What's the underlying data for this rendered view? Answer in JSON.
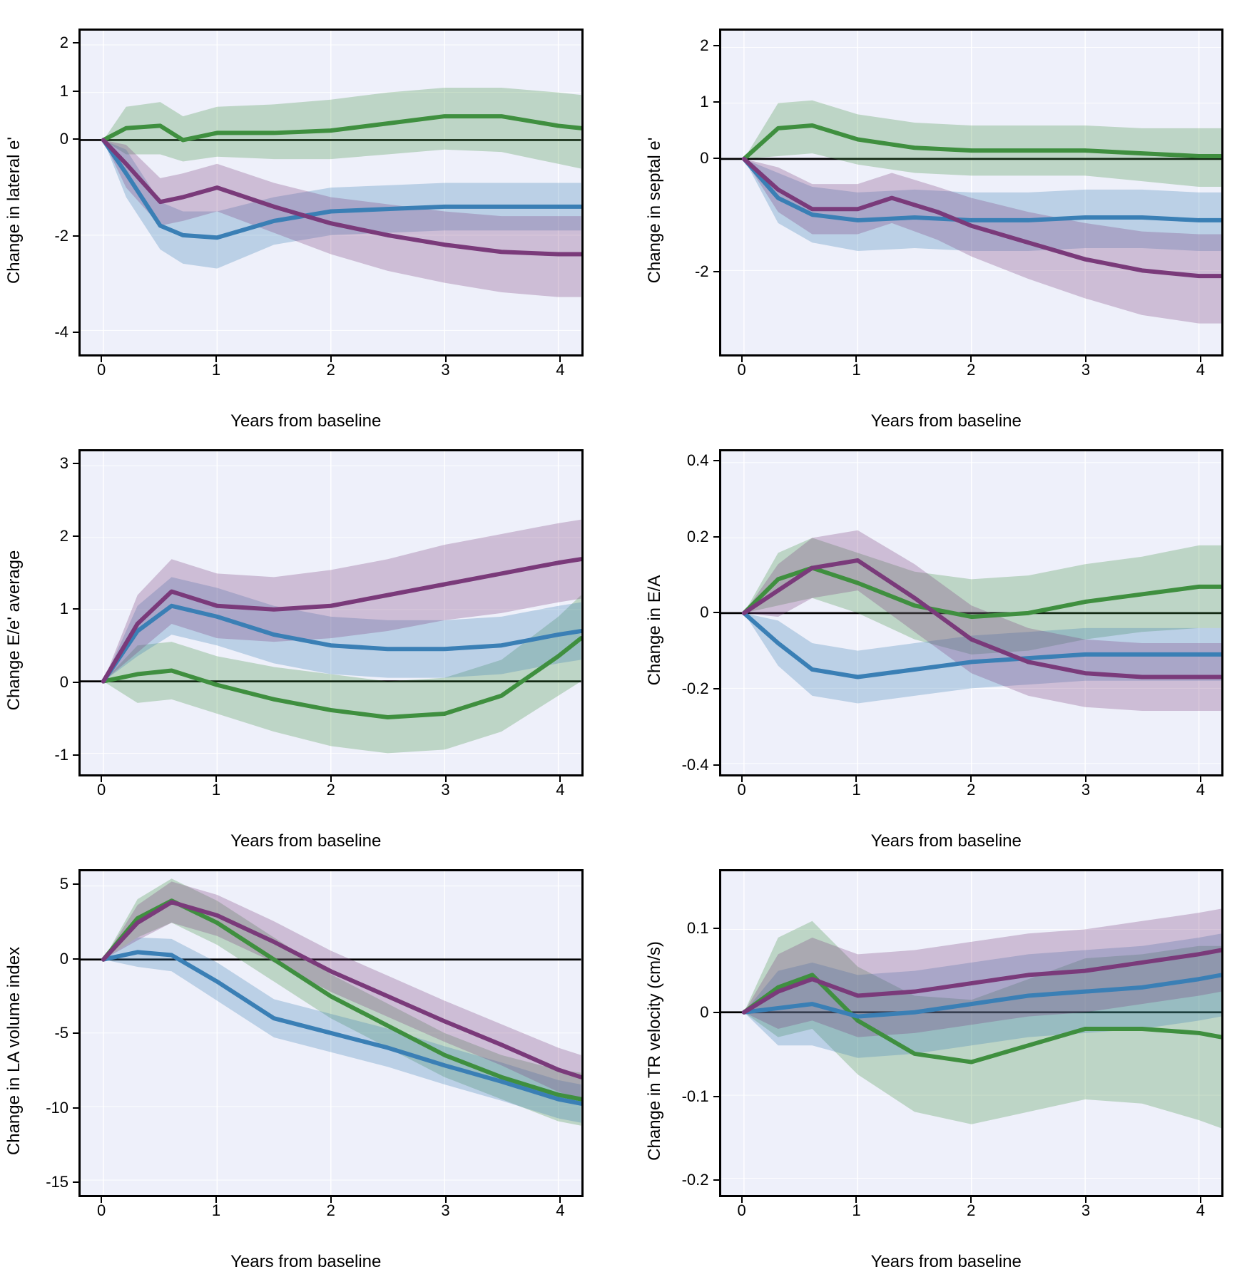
{
  "global": {
    "xLabel": "Years from baseline",
    "xlim": [
      -0.2,
      4.2
    ],
    "xticks": [
      0,
      1,
      2,
      3,
      4
    ],
    "background_color": "#eef0fa",
    "border_color": "#000000",
    "grid_color": "#ffffff",
    "axis_fontsize": 24,
    "tick_fontsize": 22,
    "line_width": 3,
    "zero_line_color": "#000000",
    "zero_line_width": 3,
    "band_opacity": 0.28,
    "series_colors": {
      "green": "#3f8f3f",
      "blue": "#3a7fb5",
      "purple": "#7a3a7a"
    }
  },
  "panels": [
    {
      "id": "lateral-e",
      "yLabel": "Change in lateral e'",
      "ylim": [
        -4.5,
        2.3
      ],
      "yticks": [
        -4,
        -2,
        0,
        1,
        2
      ],
      "series": [
        {
          "color": "green",
          "x": [
            0,
            0.2,
            0.5,
            0.7,
            1.0,
            1.5,
            2.0,
            2.5,
            3.0,
            3.5,
            4.0,
            4.2
          ],
          "y": [
            0,
            0.25,
            0.3,
            0.0,
            0.15,
            0.15,
            0.2,
            0.35,
            0.5,
            0.5,
            0.3,
            0.25
          ],
          "lo": [
            0,
            -0.3,
            -0.3,
            -0.45,
            -0.35,
            -0.4,
            -0.4,
            -0.3,
            -0.2,
            -0.25,
            -0.5,
            -0.6
          ],
          "hi": [
            0,
            0.7,
            0.8,
            0.5,
            0.7,
            0.75,
            0.85,
            1.0,
            1.1,
            1.1,
            1.0,
            0.95
          ]
        },
        {
          "color": "blue",
          "x": [
            0,
            0.2,
            0.5,
            0.7,
            1.0,
            1.5,
            2.0,
            2.5,
            3.0,
            3.5,
            4.0,
            4.2
          ],
          "y": [
            0,
            -0.7,
            -1.8,
            -2.0,
            -2.05,
            -1.7,
            -1.5,
            -1.45,
            -1.4,
            -1.4,
            -1.4,
            -1.4
          ],
          "lo": [
            0,
            -1.2,
            -2.3,
            -2.6,
            -2.7,
            -2.2,
            -2.0,
            -1.95,
            -1.9,
            -1.9,
            -1.9,
            -1.9
          ],
          "hi": [
            0,
            -0.2,
            -1.3,
            -1.5,
            -1.5,
            -1.2,
            -1.0,
            -0.95,
            -0.9,
            -0.9,
            -0.9,
            -0.9
          ]
        },
        {
          "color": "purple",
          "x": [
            0,
            0.2,
            0.5,
            0.7,
            1.0,
            1.5,
            2.0,
            2.5,
            3.0,
            3.5,
            4.0,
            4.2
          ],
          "y": [
            0,
            -0.5,
            -1.3,
            -1.2,
            -1.0,
            -1.4,
            -1.75,
            -2.0,
            -2.2,
            -2.35,
            -2.4,
            -2.4
          ],
          "lo": [
            0,
            -1.0,
            -1.8,
            -1.7,
            -1.5,
            -1.95,
            -2.4,
            -2.75,
            -3.0,
            -3.2,
            -3.3,
            -3.3
          ],
          "hi": [
            0,
            -0.1,
            -0.8,
            -0.7,
            -0.5,
            -0.9,
            -1.2,
            -1.35,
            -1.5,
            -1.6,
            -1.6,
            -1.6
          ]
        }
      ]
    },
    {
      "id": "septal-e",
      "yLabel": "Change in septal e'",
      "ylim": [
        -3.5,
        2.3
      ],
      "yticks": [
        -2,
        0,
        1,
        2
      ],
      "series": [
        {
          "color": "green",
          "x": [
            0,
            0.3,
            0.6,
            1.0,
            1.5,
            2.0,
            2.5,
            3.0,
            3.5,
            4.0,
            4.2
          ],
          "y": [
            0,
            0.55,
            0.6,
            0.35,
            0.2,
            0.15,
            0.15,
            0.15,
            0.1,
            0.05,
            0.05
          ],
          "lo": [
            0,
            0.05,
            0.1,
            -0.1,
            -0.25,
            -0.3,
            -0.3,
            -0.3,
            -0.4,
            -0.5,
            -0.5
          ],
          "hi": [
            0,
            1.0,
            1.05,
            0.8,
            0.65,
            0.6,
            0.6,
            0.6,
            0.55,
            0.55,
            0.55
          ]
        },
        {
          "color": "blue",
          "x": [
            0,
            0.3,
            0.6,
            1.0,
            1.5,
            2.0,
            2.5,
            3.0,
            3.5,
            4.0,
            4.2
          ],
          "y": [
            0,
            -0.7,
            -1.0,
            -1.1,
            -1.05,
            -1.1,
            -1.1,
            -1.05,
            -1.05,
            -1.1,
            -1.1
          ],
          "lo": [
            0,
            -1.15,
            -1.5,
            -1.65,
            -1.6,
            -1.65,
            -1.65,
            -1.6,
            -1.6,
            -1.65,
            -1.65
          ],
          "hi": [
            0,
            -0.25,
            -0.5,
            -0.6,
            -0.55,
            -0.6,
            -0.6,
            -0.55,
            -0.55,
            -0.6,
            -0.6
          ]
        },
        {
          "color": "purple",
          "x": [
            0,
            0.3,
            0.6,
            1.0,
            1.3,
            1.7,
            2.0,
            2.5,
            3.0,
            3.5,
            4.0,
            4.2
          ],
          "y": [
            0,
            -0.55,
            -0.9,
            -0.9,
            -0.7,
            -0.95,
            -1.2,
            -1.5,
            -1.8,
            -2.0,
            -2.1,
            -2.1
          ],
          "lo": [
            0,
            -0.95,
            -1.35,
            -1.35,
            -1.15,
            -1.45,
            -1.75,
            -2.15,
            -2.5,
            -2.8,
            -2.95,
            -2.95
          ],
          "hi": [
            0,
            -0.15,
            -0.45,
            -0.45,
            -0.25,
            -0.5,
            -0.7,
            -0.95,
            -1.15,
            -1.3,
            -1.35,
            -1.35
          ]
        }
      ]
    },
    {
      "id": "e-over-e",
      "yLabel": "Change E/e' average",
      "ylim": [
        -1.3,
        3.2
      ],
      "yticks": [
        -1,
        0,
        1,
        2,
        3
      ],
      "series": [
        {
          "color": "green",
          "x": [
            0,
            0.3,
            0.6,
            1.0,
            1.5,
            2.0,
            2.5,
            3.0,
            3.5,
            4.0,
            4.2
          ],
          "y": [
            0,
            0.1,
            0.15,
            -0.05,
            -0.25,
            -0.4,
            -0.5,
            -0.45,
            -0.2,
            0.35,
            0.6
          ],
          "lo": [
            0,
            -0.3,
            -0.25,
            -0.45,
            -0.7,
            -0.9,
            -1.0,
            -0.95,
            -0.7,
            -0.2,
            0.0
          ],
          "hi": [
            0,
            0.5,
            0.55,
            0.35,
            0.2,
            0.1,
            0.0,
            0.05,
            0.3,
            0.9,
            1.2
          ]
        },
        {
          "color": "blue",
          "x": [
            0,
            0.3,
            0.6,
            1.0,
            1.5,
            2.0,
            2.5,
            3.0,
            3.5,
            4.0,
            4.2
          ],
          "y": [
            0,
            0.7,
            1.05,
            0.9,
            0.65,
            0.5,
            0.45,
            0.45,
            0.5,
            0.65,
            0.7
          ],
          "lo": [
            0,
            0.35,
            0.65,
            0.5,
            0.25,
            0.1,
            0.05,
            0.05,
            0.1,
            0.25,
            0.3
          ],
          "hi": [
            0,
            1.05,
            1.45,
            1.3,
            1.05,
            0.9,
            0.85,
            0.85,
            0.9,
            1.05,
            1.1
          ]
        },
        {
          "color": "purple",
          "x": [
            0,
            0.3,
            0.6,
            1.0,
            1.5,
            2.0,
            2.5,
            3.0,
            3.5,
            4.0,
            4.2
          ],
          "y": [
            0,
            0.8,
            1.25,
            1.05,
            1.0,
            1.05,
            1.2,
            1.35,
            1.5,
            1.65,
            1.7
          ],
          "lo": [
            0,
            0.4,
            0.8,
            0.6,
            0.55,
            0.6,
            0.7,
            0.85,
            0.95,
            1.1,
            1.15
          ],
          "hi": [
            0,
            1.2,
            1.7,
            1.5,
            1.45,
            1.55,
            1.7,
            1.9,
            2.05,
            2.2,
            2.25
          ]
        }
      ]
    },
    {
      "id": "e-a",
      "yLabel": "Change in E/A",
      "ylim": [
        -0.43,
        0.43
      ],
      "yticks": [
        -0.4,
        -0.2,
        0,
        0.2,
        0.4
      ],
      "series": [
        {
          "color": "green",
          "x": [
            0,
            0.3,
            0.6,
            1.0,
            1.5,
            2.0,
            2.5,
            3.0,
            3.5,
            4.0,
            4.2
          ],
          "y": [
            0,
            0.09,
            0.12,
            0.08,
            0.02,
            -0.01,
            0.0,
            0.03,
            0.05,
            0.07,
            0.07
          ],
          "lo": [
            0,
            0.02,
            0.04,
            0.0,
            -0.07,
            -0.11,
            -0.1,
            -0.07,
            -0.05,
            -0.04,
            -0.04
          ],
          "hi": [
            0,
            0.16,
            0.2,
            0.16,
            0.11,
            0.09,
            0.1,
            0.13,
            0.15,
            0.18,
            0.18
          ]
        },
        {
          "color": "blue",
          "x": [
            0,
            0.3,
            0.6,
            1.0,
            1.5,
            2.0,
            2.5,
            3.0,
            3.5,
            4.0,
            4.2
          ],
          "y": [
            0,
            -0.08,
            -0.15,
            -0.17,
            -0.15,
            -0.13,
            -0.12,
            -0.11,
            -0.11,
            -0.11,
            -0.11
          ],
          "lo": [
            0,
            -0.14,
            -0.22,
            -0.24,
            -0.22,
            -0.2,
            -0.19,
            -0.18,
            -0.18,
            -0.18,
            -0.18
          ],
          "hi": [
            0,
            -0.02,
            -0.08,
            -0.1,
            -0.08,
            -0.06,
            -0.05,
            -0.04,
            -0.04,
            -0.04,
            -0.04
          ]
        },
        {
          "color": "purple",
          "x": [
            0,
            0.3,
            0.6,
            1.0,
            1.5,
            2.0,
            2.5,
            3.0,
            3.5,
            4.0,
            4.2
          ],
          "y": [
            0,
            0.06,
            0.12,
            0.14,
            0.04,
            -0.07,
            -0.13,
            -0.16,
            -0.17,
            -0.17,
            -0.17
          ],
          "lo": [
            0,
            -0.01,
            0.04,
            0.06,
            -0.05,
            -0.16,
            -0.22,
            -0.25,
            -0.26,
            -0.26,
            -0.26
          ],
          "hi": [
            0,
            0.13,
            0.2,
            0.22,
            0.13,
            0.02,
            -0.04,
            -0.07,
            -0.08,
            -0.08,
            -0.08
          ]
        }
      ]
    },
    {
      "id": "la-volume",
      "yLabel": "Change in LA volume index",
      "ylim": [
        -16,
        6
      ],
      "yticks": [
        -15,
        -10,
        -5,
        0,
        5
      ],
      "series": [
        {
          "color": "green",
          "x": [
            0,
            0.3,
            0.6,
            1.0,
            1.5,
            2.0,
            2.5,
            3.0,
            3.5,
            4.0,
            4.2
          ],
          "y": [
            0,
            2.8,
            4.0,
            2.5,
            0.0,
            -2.5,
            -4.5,
            -6.5,
            -8.0,
            -9.2,
            -9.5
          ],
          "lo": [
            0,
            1.5,
            2.5,
            1.0,
            -1.5,
            -4.0,
            -6.0,
            -8.0,
            -9.5,
            -11.0,
            -11.3
          ],
          "hi": [
            0,
            4.1,
            5.5,
            4.0,
            1.5,
            -1.0,
            -3.0,
            -5.0,
            -6.5,
            -7.5,
            -7.7
          ]
        },
        {
          "color": "blue",
          "x": [
            0,
            0.3,
            0.6,
            1.0,
            1.5,
            2.0,
            2.5,
            3.0,
            3.5,
            4.0,
            4.2
          ],
          "y": [
            0,
            0.5,
            0.3,
            -1.5,
            -4.0,
            -5.0,
            -6.0,
            -7.2,
            -8.3,
            -9.5,
            -9.8
          ],
          "lo": [
            0,
            -0.5,
            -0.8,
            -2.8,
            -5.3,
            -6.3,
            -7.3,
            -8.5,
            -9.6,
            -10.8,
            -11.1
          ],
          "hi": [
            0,
            1.5,
            1.4,
            -0.2,
            -2.7,
            -3.7,
            -4.7,
            -5.9,
            -7.0,
            -8.2,
            -8.5
          ]
        },
        {
          "color": "purple",
          "x": [
            0,
            0.3,
            0.6,
            1.0,
            1.5,
            2.0,
            2.5,
            3.0,
            3.5,
            4.0,
            4.2
          ],
          "y": [
            0,
            2.5,
            3.9,
            3.0,
            1.2,
            -0.8,
            -2.5,
            -4.2,
            -5.8,
            -7.5,
            -8.0
          ],
          "lo": [
            0,
            1.3,
            2.5,
            1.6,
            -0.2,
            -2.2,
            -3.9,
            -5.6,
            -7.2,
            -9.0,
            -9.5
          ],
          "hi": [
            0,
            3.7,
            5.3,
            4.4,
            2.6,
            0.6,
            -1.1,
            -2.8,
            -4.4,
            -6.0,
            -6.5
          ]
        }
      ]
    },
    {
      "id": "tr-velocity",
      "yLabel": "Change in TR velocity (cm/s)",
      "ylim": [
        -0.22,
        0.17
      ],
      "yticks": [
        -0.2,
        -0.1,
        0,
        0.1
      ],
      "series": [
        {
          "color": "green",
          "x": [
            0,
            0.3,
            0.6,
            1.0,
            1.5,
            2.0,
            2.5,
            3.0,
            3.5,
            4.0,
            4.2
          ],
          "y": [
            0,
            0.03,
            0.045,
            -0.01,
            -0.05,
            -0.06,
            -0.04,
            -0.02,
            -0.02,
            -0.025,
            -0.03
          ],
          "lo": [
            0,
            -0.03,
            -0.02,
            -0.075,
            -0.12,
            -0.135,
            -0.12,
            -0.105,
            -0.11,
            -0.13,
            -0.14
          ],
          "hi": [
            0,
            0.09,
            0.11,
            0.055,
            0.02,
            0.015,
            0.04,
            0.065,
            0.07,
            0.08,
            0.08
          ]
        },
        {
          "color": "blue",
          "x": [
            0,
            0.3,
            0.6,
            1.0,
            1.5,
            2.0,
            2.5,
            3.0,
            3.5,
            4.0,
            4.2
          ],
          "y": [
            0,
            0.005,
            0.01,
            -0.005,
            0.0,
            0.01,
            0.02,
            0.025,
            0.03,
            0.04,
            0.045
          ],
          "lo": [
            0,
            -0.04,
            -0.04,
            -0.055,
            -0.05,
            -0.04,
            -0.03,
            -0.025,
            -0.02,
            -0.01,
            -0.005
          ],
          "hi": [
            0,
            0.05,
            0.06,
            0.045,
            0.05,
            0.06,
            0.07,
            0.075,
            0.08,
            0.09,
            0.095
          ]
        },
        {
          "color": "purple",
          "x": [
            0,
            0.3,
            0.6,
            1.0,
            1.5,
            2.0,
            2.5,
            3.0,
            3.5,
            4.0,
            4.2
          ],
          "y": [
            0,
            0.025,
            0.04,
            0.02,
            0.025,
            0.035,
            0.045,
            0.05,
            0.06,
            0.07,
            0.075
          ],
          "lo": [
            0,
            -0.02,
            -0.01,
            -0.03,
            -0.025,
            -0.015,
            -0.005,
            0.0,
            0.01,
            0.02,
            0.025
          ],
          "hi": [
            0,
            0.07,
            0.09,
            0.07,
            0.075,
            0.085,
            0.095,
            0.1,
            0.11,
            0.12,
            0.125
          ]
        }
      ]
    }
  ]
}
